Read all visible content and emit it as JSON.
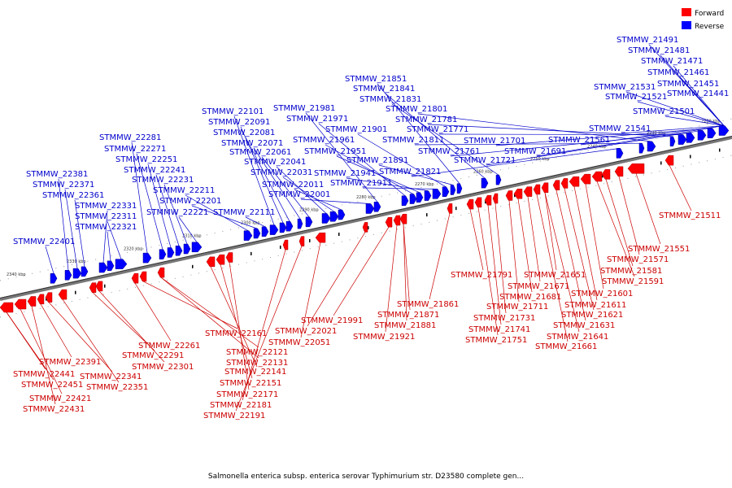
{
  "caption": "Salmonella enterica subsp. enterica serovar Typhimurium str. D23580 complete gen...",
  "legend": {
    "forward": {
      "label": "Forward",
      "color": "#ff0000"
    },
    "reverse": {
      "label": "Reverse",
      "color": "#0000ff"
    }
  },
  "axis": {
    "unit": "kbp",
    "ticks": [
      "2340 kbp",
      "2330 kbp",
      "2320 kbp",
      "2310 kbp",
      "2300 kbp",
      "2290 kbp",
      "2280 kbp",
      "2270 kbp",
      "2260 kbp",
      "2250 kbp",
      "2240 kbp",
      "2230 kbp",
      "2220 kbp"
    ]
  },
  "reverse_genes": [
    "STMMW_22401",
    "STMMW_22381",
    "STMMW_22371",
    "STMMW_22361",
    "STMMW_22331",
    "STMMW_22321",
    "STMMW_22311",
    "STMMW_22281",
    "STMMW_22271",
    "STMMW_22251",
    "STMMW_22241",
    "STMMW_22231",
    "STMMW_22221",
    "STMMW_22211",
    "STMMW_22201",
    "STMMW_22111",
    "STMMW_22101",
    "STMMW_22091",
    "STMMW_22081",
    "STMMW_22071",
    "STMMW_22061",
    "STMMW_22041",
    "STMMW_22031",
    "STMMW_22011",
    "STMMW_22001",
    "STMMW_21981",
    "STMMW_21971",
    "STMMW_21961",
    "STMMW_21951",
    "STMMW_21941",
    "STMMW_21911",
    "STMMW_21901",
    "STMMW_21891",
    "STMMW_21851",
    "STMMW_21841",
    "STMMW_21831",
    "STMMW_21821",
    "STMMW_21811",
    "STMMW_21801",
    "STMMW_21781",
    "STMMW_21771",
    "STMMW_21761",
    "STMMW_21721",
    "STMMW_21701",
    "STMMW_21691",
    "STMMW_21561",
    "STMMW_21541",
    "STMMW_21531",
    "STMMW_21521",
    "STMMW_21501",
    "STMMW_21491",
    "STMMW_21481",
    "STMMW_21471",
    "STMMW_21461",
    "STMMW_21451",
    "STMMW_21441"
  ],
  "forward_genes": [
    "STMMW_22441",
    "STMMW_22451",
    "STMMW_22421",
    "STMMW_22431",
    "STMMW_22391",
    "STMMW_22341",
    "STMMW_22351",
    "STMMW_22291",
    "STMMW_22301",
    "STMMW_22261",
    "STMMW_22161",
    "STMMW_22121",
    "STMMW_22131",
    "STMMW_22141",
    "STMMW_22151",
    "STMMW_22171",
    "STMMW_22181",
    "STMMW_22191",
    "STMMW_22051",
    "STMMW_22021",
    "STMMW_21991",
    "STMMW_21921",
    "STMMW_21881",
    "STMMW_21871",
    "STMMW_21861",
    "STMMW_21791",
    "STMMW_21751",
    "STMMW_21741",
    "STMMW_21731",
    "STMMW_21711",
    "STMMW_21681",
    "STMMW_21671",
    "STMMW_21661",
    "STMMW_21651",
    "STMMW_21641",
    "STMMW_21631",
    "STMMW_21621",
    "STMMW_21611",
    "STMMW_21601",
    "STMMW_21591",
    "STMMW_21581",
    "STMMW_21571",
    "STMMW_21551",
    "STMMW_21511"
  ]
}
